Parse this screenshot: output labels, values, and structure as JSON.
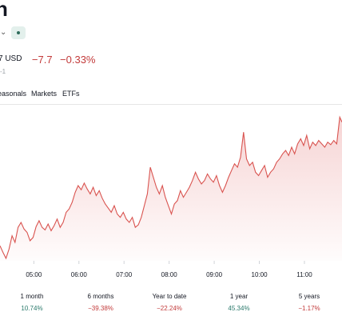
{
  "header": {
    "title": "n",
    "chevron_icon": "chevron-down-icon",
    "badge_icon": "market-status-dot-icon"
  },
  "quote": {
    "currency_fragment": "7 USD",
    "change": "−7.7",
    "change_pct": "−0.33%",
    "subline": "-1",
    "change_color": "#c33b3b"
  },
  "tabs": [
    {
      "label": "easonals"
    },
    {
      "label": "Markets"
    },
    {
      "label": "ETFs"
    }
  ],
  "chart_data": {
    "type": "area",
    "x_tick_labels": [
      "05:00",
      "06:00",
      "07:00",
      "08:00",
      "09:00",
      "10:00",
      "11:00"
    ],
    "x_tick_times": [
      "05:00",
      "06:00",
      "07:00",
      "08:00",
      "09:00",
      "10:00",
      "11:00"
    ],
    "x_range": [
      "04:15",
      "11:50"
    ],
    "series": [
      {
        "color": "#d9534f",
        "points": [
          [
            "04:15",
            18
          ],
          [
            "04:19",
            10
          ],
          [
            "04:23",
            3
          ],
          [
            "04:27",
            14
          ],
          [
            "04:31",
            30
          ],
          [
            "04:35",
            22
          ],
          [
            "04:39",
            40
          ],
          [
            "04:43",
            46
          ],
          [
            "04:47",
            38
          ],
          [
            "04:51",
            34
          ],
          [
            "04:55",
            24
          ],
          [
            "04:59",
            28
          ],
          [
            "05:03",
            41
          ],
          [
            "05:07",
            48
          ],
          [
            "05:11",
            40
          ],
          [
            "05:15",
            37
          ],
          [
            "05:19",
            44
          ],
          [
            "05:23",
            36
          ],
          [
            "05:27",
            42
          ],
          [
            "05:31",
            50
          ],
          [
            "05:35",
            40
          ],
          [
            "05:39",
            46
          ],
          [
            "05:43",
            58
          ],
          [
            "05:47",
            62
          ],
          [
            "05:51",
            70
          ],
          [
            "05:55",
            82
          ],
          [
            "05:59",
            90
          ],
          [
            "06:03",
            85
          ],
          [
            "06:07",
            93
          ],
          [
            "06:11",
            86
          ],
          [
            "06:15",
            80
          ],
          [
            "06:19",
            88
          ],
          [
            "06:23",
            78
          ],
          [
            "06:27",
            84
          ],
          [
            "06:31",
            75
          ],
          [
            "06:35",
            68
          ],
          [
            "06:39",
            63
          ],
          [
            "06:43",
            58
          ],
          [
            "06:47",
            66
          ],
          [
            "06:51",
            56
          ],
          [
            "06:55",
            52
          ],
          [
            "06:59",
            58
          ],
          [
            "07:03",
            50
          ],
          [
            "07:07",
            46
          ],
          [
            "07:11",
            52
          ],
          [
            "07:15",
            40
          ],
          [
            "07:19",
            43
          ],
          [
            "07:23",
            52
          ],
          [
            "07:27",
            66
          ],
          [
            "07:31",
            80
          ],
          [
            "07:35",
            112
          ],
          [
            "07:39",
            100
          ],
          [
            "07:43",
            88
          ],
          [
            "07:47",
            80
          ],
          [
            "07:51",
            90
          ],
          [
            "07:55",
            76
          ],
          [
            "07:59",
            66
          ],
          [
            "08:03",
            56
          ],
          [
            "08:07",
            68
          ],
          [
            "08:11",
            72
          ],
          [
            "08:15",
            84
          ],
          [
            "08:19",
            76
          ],
          [
            "08:23",
            82
          ],
          [
            "08:27",
            88
          ],
          [
            "08:31",
            96
          ],
          [
            "08:35",
            106
          ],
          [
            "08:39",
            98
          ],
          [
            "08:43",
            92
          ],
          [
            "08:47",
            96
          ],
          [
            "08:51",
            104
          ],
          [
            "08:55",
            98
          ],
          [
            "08:59",
            94
          ],
          [
            "09:03",
            102
          ],
          [
            "09:07",
            90
          ],
          [
            "09:11",
            82
          ],
          [
            "09:15",
            90
          ],
          [
            "09:19",
            100
          ],
          [
            "09:23",
            108
          ],
          [
            "09:27",
            116
          ],
          [
            "09:31",
            112
          ],
          [
            "09:35",
            124
          ],
          [
            "09:39",
            154
          ],
          [
            "09:43",
            122
          ],
          [
            "09:47",
            114
          ],
          [
            "09:51",
            118
          ],
          [
            "09:55",
            106
          ],
          [
            "09:59",
            102
          ],
          [
            "10:03",
            108
          ],
          [
            "10:07",
            114
          ],
          [
            "10:11",
            100
          ],
          [
            "10:15",
            106
          ],
          [
            "10:19",
            110
          ],
          [
            "10:23",
            118
          ],
          [
            "10:27",
            122
          ],
          [
            "10:31",
            128
          ],
          [
            "10:35",
            132
          ],
          [
            "10:39",
            126
          ],
          [
            "10:43",
            136
          ],
          [
            "10:47",
            128
          ],
          [
            "10:51",
            140
          ],
          [
            "10:55",
            146
          ],
          [
            "10:59",
            138
          ],
          [
            "11:03",
            150
          ],
          [
            "11:07",
            134
          ],
          [
            "11:11",
            142
          ],
          [
            "11:15",
            138
          ],
          [
            "11:19",
            144
          ],
          [
            "11:23",
            140
          ],
          [
            "11:27",
            136
          ],
          [
            "11:31",
            142
          ],
          [
            "11:35",
            139
          ],
          [
            "11:39",
            144
          ],
          [
            "11:43",
            140
          ],
          [
            "11:47",
            172
          ],
          [
            "11:50",
            166
          ]
        ]
      }
    ],
    "y_range": [
      0,
      180
    ],
    "grid": false
  },
  "periods": [
    {
      "label": "1 month",
      "value": "10.74%",
      "trend": "pos"
    },
    {
      "label": "6 months",
      "value": "−39.38%",
      "trend": "neg"
    },
    {
      "label": "Year to date",
      "value": "−22.24%",
      "trend": "neg"
    },
    {
      "label": "1 year",
      "value": "45.34%",
      "trend": "pos"
    },
    {
      "label": "5 years",
      "value": "−1.17%",
      "trend": "neg"
    }
  ]
}
